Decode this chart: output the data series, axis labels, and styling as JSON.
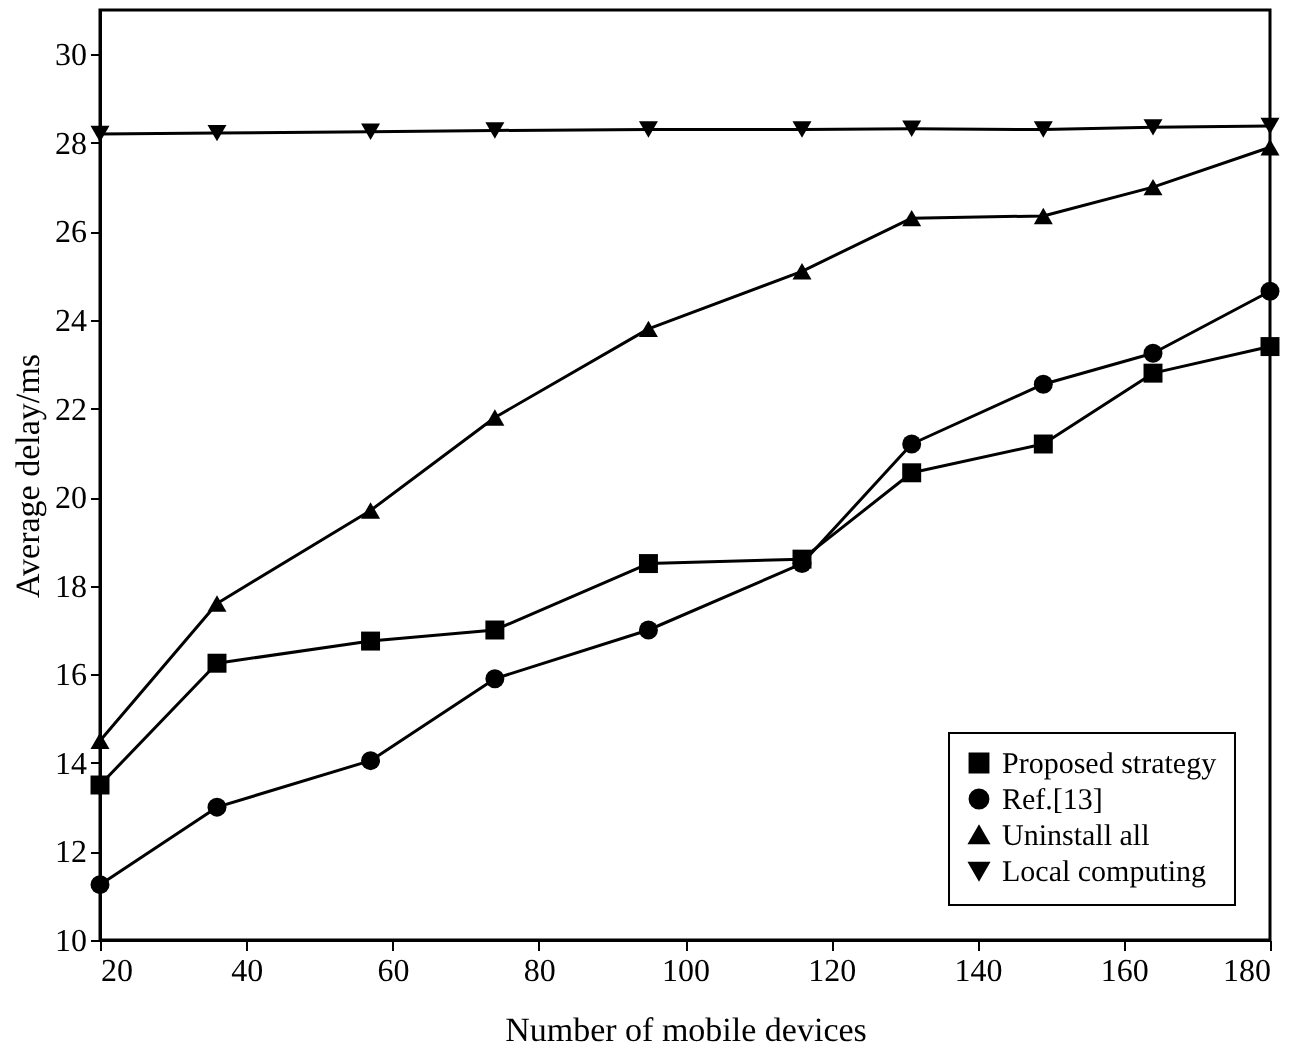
{
  "chart_data": {
    "type": "line",
    "xlabel": "Number of mobile devices",
    "ylabel": "Average delay/ms",
    "x": [
      20,
      36,
      57,
      74,
      95,
      116,
      131,
      149,
      164,
      180
    ],
    "series": [
      {
        "name": "Proposed strategy",
        "color": "#000000",
        "marker": "square",
        "values": [
          13.5,
          16.25,
          16.75,
          17.0,
          18.5,
          18.6,
          20.55,
          21.2,
          22.8,
          23.4
        ]
      },
      {
        "name": "Ref.[13]",
        "color": "#000000",
        "marker": "circle",
        "values": [
          11.25,
          13.0,
          14.05,
          15.9,
          17.0,
          18.5,
          21.2,
          22.55,
          23.25,
          24.65
        ]
      },
      {
        "name": "Uninstall all",
        "color": "#000000",
        "marker": "triangle-up",
        "values": [
          14.5,
          17.6,
          19.7,
          21.8,
          23.8,
          25.1,
          26.3,
          26.35,
          27.0,
          27.9
        ]
      },
      {
        "name": "Local computing",
        "color": "#000000",
        "marker": "triangle-down",
        "values": [
          28.2,
          28.22,
          28.25,
          28.28,
          28.3,
          28.3,
          28.32,
          28.3,
          28.35,
          28.38
        ]
      }
    ],
    "xlim": [
      20,
      180
    ],
    "xticks": [
      20,
      40,
      60,
      80,
      100,
      120,
      140,
      160,
      180
    ],
    "ylim": [
      10,
      31
    ],
    "yticks": [
      10,
      12,
      14,
      16,
      18,
      20,
      22,
      24,
      26,
      28,
      30
    ],
    "grid": false,
    "legend": "bottom right",
    "line_style": "solid"
  }
}
